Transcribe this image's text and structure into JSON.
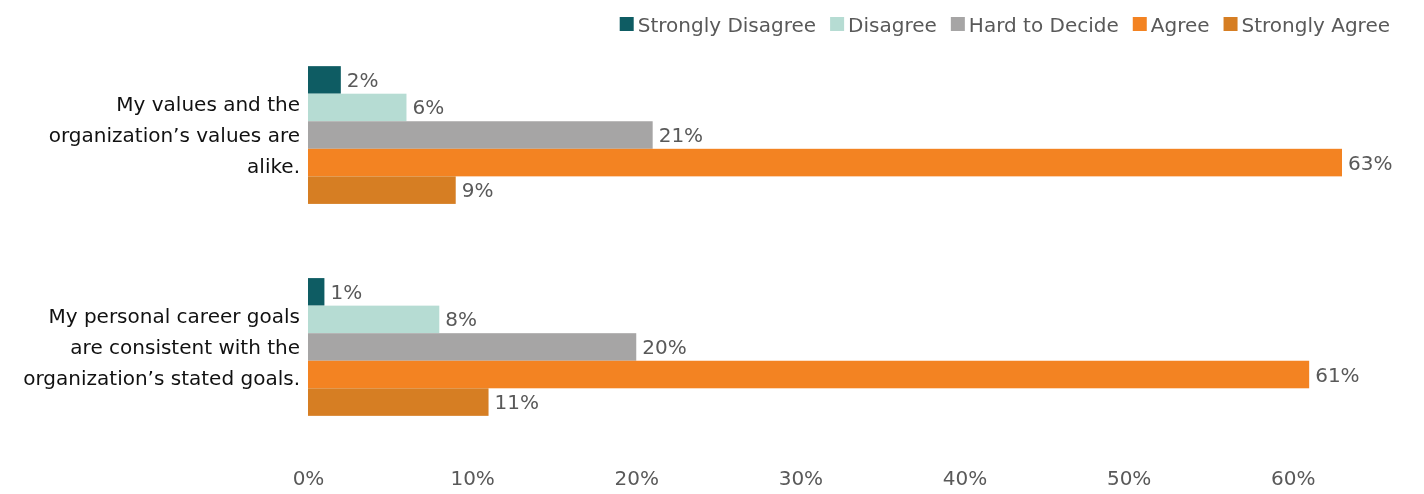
{
  "chart_data": {
    "type": "bar",
    "orientation": "horizontal",
    "categories": [
      "My values and the organization’s values are alike.",
      "My personal career goals are consistent with the organization’s stated goals."
    ],
    "series": [
      {
        "name": "Strongly Disagree",
        "color": "#0e5c63",
        "values": [
          2,
          1
        ],
        "value_labels": [
          "2%",
          "1%"
        ]
      },
      {
        "name": "Disagree",
        "color": "#b6dcd3",
        "values": [
          6,
          8
        ],
        "value_labels": [
          "6%",
          "8%"
        ]
      },
      {
        "name": "Hard to Decide",
        "color": "#a6a5a5",
        "values": [
          21,
          20
        ],
        "value_labels": [
          "21%",
          "20%"
        ]
      },
      {
        "name": "Agree",
        "color": "#f38322",
        "values": [
          63,
          61
        ],
        "value_labels": [
          "63%",
          "61%"
        ]
      },
      {
        "name": "Strongly Agree",
        "color": "#d67e23",
        "values": [
          9,
          11
        ],
        "value_labels": [
          "9%",
          "11%"
        ]
      }
    ],
    "xlim": [
      0,
      63
    ],
    "xticks": [
      {
        "value": 0,
        "label": "0%"
      },
      {
        "value": 10,
        "label": "10%"
      },
      {
        "value": 20,
        "label": "20%"
      },
      {
        "value": 30,
        "label": "30%"
      },
      {
        "value": 40,
        "label": "40%"
      },
      {
        "value": 50,
        "label": "50%"
      },
      {
        "value": 60,
        "label": "60%"
      }
    ],
    "legend": "top",
    "grid": false
  }
}
